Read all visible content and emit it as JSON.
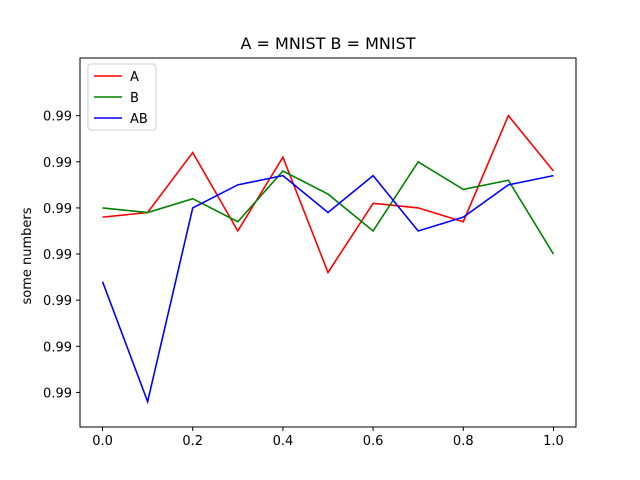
{
  "chart_data": {
    "type": "line",
    "title": "A = MNIST B = MNIST",
    "xlabel": "",
    "ylabel": "some numbers",
    "x": [
      0.0,
      0.1,
      0.2,
      0.3,
      0.4,
      0.5,
      0.6,
      0.7,
      0.8,
      0.9,
      1.0
    ],
    "xlim": [
      -0.05,
      1.05
    ],
    "ylim": [
      0.98825,
      0.99625
    ],
    "x_ticks": [
      0.0,
      0.2,
      0.4,
      0.6,
      0.8,
      1.0
    ],
    "x_tick_labels": [
      "0.0",
      "0.2",
      "0.4",
      "0.6",
      "0.8",
      "1.0"
    ],
    "y_ticks": [
      0.989,
      0.99,
      0.991,
      0.992,
      0.993,
      0.994,
      0.995,
      0.996
    ],
    "y_tick_labels": [
      "0.99",
      "0.99",
      "0.99",
      "0.99",
      "0.99",
      "0.99",
      "0.99"
    ],
    "y_tick_values_labeled": [
      0.989,
      0.99,
      0.991,
      0.992,
      0.993,
      0.994,
      0.995
    ],
    "grid": false,
    "legend_position": "top-left",
    "series": [
      {
        "name": "A",
        "color": "#ff0000",
        "values": [
          0.9928,
          0.9929,
          0.9942,
          0.9925,
          0.9941,
          0.9916,
          0.9931,
          0.993,
          0.9927,
          0.995,
          0.9938
        ]
      },
      {
        "name": "B",
        "color": "#008000",
        "values": [
          0.993,
          0.9929,
          0.9932,
          0.9927,
          0.9938,
          0.9933,
          0.9925,
          0.994,
          0.9934,
          0.9936,
          0.992
        ]
      },
      {
        "name": "AB",
        "color": "#0000ff",
        "values": [
          0.9914,
          0.9888,
          0.993,
          0.9935,
          0.9937,
          0.9929,
          0.9937,
          0.9925,
          0.9928,
          0.9935,
          0.9937
        ]
      }
    ]
  }
}
